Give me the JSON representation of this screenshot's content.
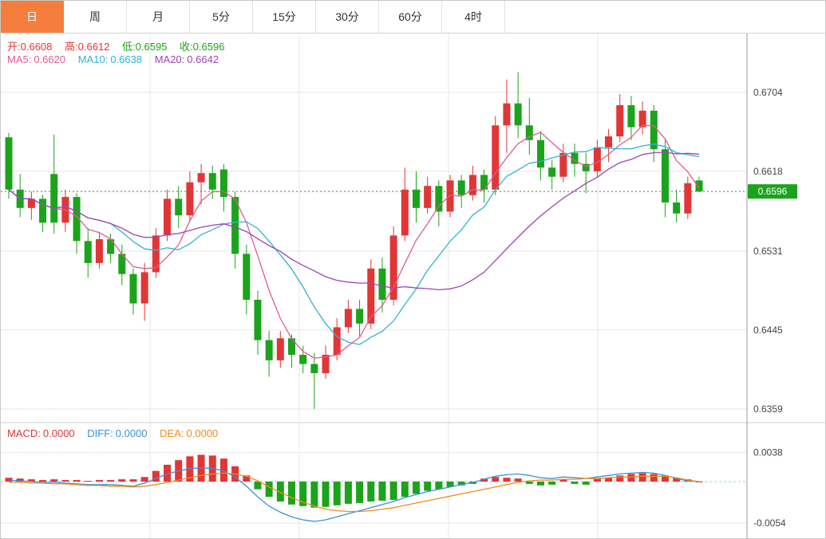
{
  "tabs": {
    "items": [
      {
        "label": "日",
        "active": true
      },
      {
        "label": "周",
        "active": false
      },
      {
        "label": "月",
        "active": false
      },
      {
        "label": "5分",
        "active": false
      },
      {
        "label": "15分",
        "active": false
      },
      {
        "label": "30分",
        "active": false
      },
      {
        "label": "60分",
        "active": false
      },
      {
        "label": "4时",
        "active": false
      }
    ]
  },
  "info": {
    "open": {
      "label": "开:",
      "value": "0.6608"
    },
    "high": {
      "label": "高:",
      "value": "0.6612"
    },
    "low": {
      "label": "低:",
      "value": "0.6595"
    },
    "close": {
      "label": "收:",
      "value": "0.6596"
    }
  },
  "ma_info": {
    "ma5": {
      "label": "MA5:",
      "value": "0.6620"
    },
    "ma10": {
      "label": "MA10:",
      "value": "0.6638"
    },
    "ma20": {
      "label": "MA20:",
      "value": "0.6642"
    }
  },
  "macd_info": {
    "macd": {
      "label": "MACD:",
      "value": "0.0000"
    },
    "diff": {
      "label": "DIFF:",
      "value": "0.0000"
    },
    "dea": {
      "label": "DEA:",
      "value": "0.0000"
    }
  },
  "price_axis": {
    "labels": [
      {
        "text": "0.6704",
        "value": 0.6704
      },
      {
        "text": "0.6618",
        "value": 0.6618
      },
      {
        "text": "0.6531",
        "value": 0.6531
      },
      {
        "text": "0.6445",
        "value": 0.6445
      },
      {
        "text": "0.6359",
        "value": 0.6359
      }
    ],
    "current": {
      "text": "0.6596",
      "value": 0.6596
    }
  },
  "macd_axis": {
    "labels": [
      {
        "text": "0.0038",
        "value": 0.0038
      },
      {
        "text": "-0.0054",
        "value": -0.0054
      }
    ]
  },
  "colors": {
    "up": "#e23535",
    "down": "#1ca31c",
    "ma": [
      "#e05c8f",
      "#2fb3d6",
      "#9b46b8"
    ],
    "diff": "#3f8fd6",
    "dea": "#ef8c1c",
    "grid": "#e7e7e7",
    "axis_border": "#9a9a9a",
    "divider": "#cfcfcf",
    "zero_dash": "#7fd4ea",
    "price_line": "#1ca31c",
    "badge_bg": "#1ca31c",
    "badge_text": "#ffffff",
    "axis_text": "#444444",
    "tab_active_bg": "#f57e3e"
  },
  "chart_data": {
    "type": "candlestick+macd",
    "title": "",
    "main": {
      "ylim": [
        0.6345,
        0.6769
      ],
      "grid": true,
      "ma_windows": [
        5,
        10,
        20
      ],
      "current_price": 0.6596,
      "candles": [
        [
          0.6655,
          0.666,
          0.6588,
          0.6598
        ],
        [
          0.6598,
          0.6615,
          0.6568,
          0.6578
        ],
        [
          0.6578,
          0.6596,
          0.6565,
          0.6588
        ],
        [
          0.6588,
          0.6592,
          0.6552,
          0.6562
        ],
        [
          0.6615,
          0.6658,
          0.655,
          0.6562
        ],
        [
          0.6562,
          0.6598,
          0.6552,
          0.659
        ],
        [
          0.659,
          0.6594,
          0.6528,
          0.6542
        ],
        [
          0.6542,
          0.6556,
          0.6502,
          0.6518
        ],
        [
          0.6518,
          0.6552,
          0.6512,
          0.6544
        ],
        [
          0.6544,
          0.655,
          0.6518,
          0.6528
        ],
        [
          0.6528,
          0.6538,
          0.6494,
          0.6506
        ],
        [
          0.6506,
          0.6512,
          0.6462,
          0.6474
        ],
        [
          0.6474,
          0.6518,
          0.6455,
          0.6508
        ],
        [
          0.6508,
          0.6556,
          0.6502,
          0.6548
        ],
        [
          0.6548,
          0.6598,
          0.6542,
          0.6588
        ],
        [
          0.6588,
          0.6602,
          0.6556,
          0.657
        ],
        [
          0.657,
          0.6618,
          0.6564,
          0.6606
        ],
        [
          0.6606,
          0.6626,
          0.6582,
          0.6616
        ],
        [
          0.6616,
          0.6624,
          0.6588,
          0.6598
        ],
        [
          0.662,
          0.6626,
          0.6574,
          0.659
        ],
        [
          0.659,
          0.6596,
          0.6512,
          0.6528
        ],
        [
          0.6528,
          0.6538,
          0.6462,
          0.6478
        ],
        [
          0.6478,
          0.6488,
          0.6418,
          0.6434
        ],
        [
          0.6434,
          0.6444,
          0.6394,
          0.6412
        ],
        [
          0.6412,
          0.6444,
          0.6404,
          0.6436
        ],
        [
          0.6436,
          0.644,
          0.6404,
          0.6418
        ],
        [
          0.6418,
          0.6428,
          0.6398,
          0.6408
        ],
        [
          0.6408,
          0.642,
          0.6359,
          0.6398
        ],
        [
          0.6398,
          0.6428,
          0.6392,
          0.6418
        ],
        [
          0.6418,
          0.6458,
          0.6412,
          0.6448
        ],
        [
          0.6448,
          0.6478,
          0.6442,
          0.6468
        ],
        [
          0.6468,
          0.6478,
          0.6438,
          0.6452
        ],
        [
          0.6452,
          0.6522,
          0.6446,
          0.6512
        ],
        [
          0.6512,
          0.6524,
          0.6464,
          0.6478
        ],
        [
          0.6478,
          0.6558,
          0.6472,
          0.6548
        ],
        [
          0.6548,
          0.6622,
          0.6542,
          0.6598
        ],
        [
          0.6598,
          0.6618,
          0.6562,
          0.6578
        ],
        [
          0.6578,
          0.6612,
          0.6572,
          0.6602
        ],
        [
          0.6602,
          0.6608,
          0.6558,
          0.6574
        ],
        [
          0.6574,
          0.6614,
          0.6568,
          0.6608
        ],
        [
          0.6608,
          0.6614,
          0.6578,
          0.6592
        ],
        [
          0.6592,
          0.6624,
          0.6586,
          0.6614
        ],
        [
          0.6614,
          0.662,
          0.6584,
          0.6598
        ],
        [
          0.6598,
          0.6678,
          0.6592,
          0.6668
        ],
        [
          0.6668,
          0.6718,
          0.6638,
          0.6692
        ],
        [
          0.6692,
          0.6726,
          0.6654,
          0.6668
        ],
        [
          0.6668,
          0.6698,
          0.6636,
          0.6652
        ],
        [
          0.6652,
          0.6662,
          0.6608,
          0.6622
        ],
        [
          0.6622,
          0.663,
          0.6598,
          0.6612
        ],
        [
          0.6612,
          0.6648,
          0.6606,
          0.6638
        ],
        [
          0.6638,
          0.6648,
          0.6612,
          0.6626
        ],
        [
          0.6626,
          0.6638,
          0.6594,
          0.6618
        ],
        [
          0.6618,
          0.6652,
          0.6612,
          0.6644
        ],
        [
          0.6644,
          0.6664,
          0.6628,
          0.6656
        ],
        [
          0.6656,
          0.6702,
          0.665,
          0.669
        ],
        [
          0.669,
          0.67,
          0.6652,
          0.6666
        ],
        [
          0.6666,
          0.6694,
          0.6658,
          0.6684
        ],
        [
          0.6684,
          0.669,
          0.6628,
          0.6642
        ],
        [
          0.6642,
          0.6652,
          0.6568,
          0.6584
        ],
        [
          0.6584,
          0.6598,
          0.6562,
          0.6572
        ],
        [
          0.6572,
          0.6612,
          0.6566,
          0.6605
        ],
        [
          0.6608,
          0.6612,
          0.6595,
          0.6596
        ]
      ]
    },
    "macd": {
      "ylim": [
        -0.0076,
        0.0076
      ],
      "hist": [
        0.0005,
        0.0004,
        0.0003,
        0.0002,
        0.0003,
        0.0002,
        0.0002,
        0.0001,
        0.0002,
        0.0002,
        0.0003,
        0.0003,
        0.0006,
        0.0014,
        0.0022,
        0.0028,
        0.0033,
        0.0035,
        0.0034,
        0.003,
        0.002,
        0.0008,
        -0.001,
        -0.002,
        -0.0026,
        -0.003,
        -0.0032,
        -0.0034,
        -0.0033,
        -0.0031,
        -0.0029,
        -0.0028,
        -0.0026,
        -0.0025,
        -0.0024,
        -0.002,
        -0.0016,
        -0.0012,
        -0.001,
        -0.0007,
        -0.0005,
        -0.0003,
        0.0004,
        0.0006,
        0.0005,
        0.0004,
        -0.0003,
        -0.0005,
        -0.0004,
        0.0003,
        -0.0003,
        -0.0004,
        0.0004,
        0.0005,
        0.0008,
        0.001,
        0.0011,
        0.001,
        0.0008,
        0.0005,
        0.0003,
        0.0
      ],
      "diff": [
        0.0002,
        0.0001,
        0.0,
        -0.0001,
        -0.0001,
        -0.0002,
        -0.0003,
        -0.0004,
        -0.0004,
        -0.0004,
        -0.0005,
        -0.0006,
        -0.0002,
        0.0004,
        0.001,
        0.0014,
        0.0017,
        0.0018,
        0.0017,
        0.0014,
        0.0006,
        -0.0006,
        -0.002,
        -0.0032,
        -0.004,
        -0.0046,
        -0.005,
        -0.0052,
        -0.005,
        -0.0046,
        -0.0042,
        -0.0038,
        -0.0034,
        -0.003,
        -0.0026,
        -0.0021,
        -0.0017,
        -0.0013,
        -0.001,
        -0.0007,
        -0.0004,
        -0.0001,
        0.0003,
        0.0007,
        0.0009,
        0.001,
        0.0008,
        0.0005,
        0.0004,
        0.0006,
        0.0005,
        0.0004,
        0.0006,
        0.0008,
        0.001,
        0.0011,
        0.0012,
        0.0011,
        0.0008,
        0.0004,
        0.0001,
        0.0
      ],
      "dea": [
        -0.0001,
        -0.0001,
        -0.0002,
        -0.0002,
        -0.0003,
        -0.0003,
        -0.0004,
        -0.0005,
        -0.0005,
        -0.0006,
        -0.0006,
        -0.0007,
        -0.0006,
        -0.0004,
        -0.0001,
        0.0002,
        0.0005,
        0.0008,
        0.001,
        0.0011,
        0.001,
        0.0007,
        0.0001,
        -0.0007,
        -0.0014,
        -0.0021,
        -0.0027,
        -0.0032,
        -0.0036,
        -0.0038,
        -0.0039,
        -0.0039,
        -0.0038,
        -0.0036,
        -0.0034,
        -0.0031,
        -0.0028,
        -0.0025,
        -0.0022,
        -0.0019,
        -0.0016,
        -0.0013,
        -0.001,
        -0.0007,
        -0.0004,
        -0.0001,
        0.0001,
        0.0002,
        0.0002,
        0.0003,
        0.0003,
        0.0004,
        0.0004,
        0.0005,
        0.0006,
        0.0006,
        0.0007,
        0.0007,
        0.0007,
        0.0005,
        0.0002,
        0.0
      ]
    }
  }
}
